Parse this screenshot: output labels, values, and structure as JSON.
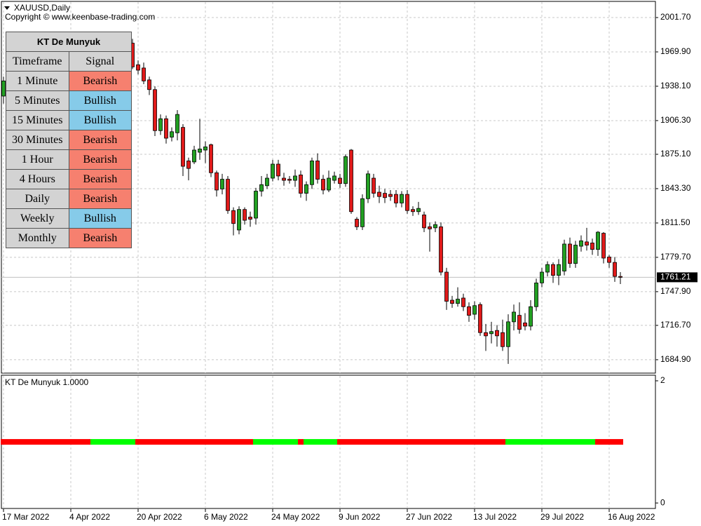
{
  "header": {
    "symbol": "XAUUSD,Daily",
    "copyright": "Copyright © www.keenbase-trading.com"
  },
  "chart_data": [
    {
      "type": "candlestick",
      "categories": [
        "17 Mar 2022",
        null,
        null,
        null,
        null,
        null,
        null,
        null,
        null,
        null,
        null,
        null,
        "4 Apr 2022",
        null,
        null,
        null,
        null,
        null,
        null,
        null,
        null,
        null,
        null,
        null,
        "20 Apr 2022",
        null,
        null,
        null,
        null,
        null,
        null,
        null,
        null,
        null,
        null,
        null,
        "6 May 2022",
        null,
        null,
        null,
        null,
        null,
        null,
        null,
        null,
        null,
        null,
        null,
        "24 May 2022",
        null,
        null,
        null,
        null,
        null,
        null,
        null,
        null,
        null,
        null,
        null,
        "9 Jun 2022",
        null,
        null,
        null,
        null,
        null,
        null,
        null,
        null,
        null,
        null,
        null,
        "27 Jun 2022",
        null,
        null,
        null,
        null,
        null,
        null,
        null,
        null,
        null,
        null,
        null,
        "13 Jul 2022",
        null,
        null,
        null,
        null,
        null,
        null,
        null,
        null,
        null,
        null,
        null,
        "29 Jul 2022",
        null,
        null,
        null,
        null,
        null,
        null,
        null,
        null,
        null,
        null,
        null,
        "16 Aug 2022",
        null,
        null
      ],
      "open": [
        1929,
        null,
        null,
        null,
        null,
        null,
        null,
        null,
        null,
        null,
        null,
        null,
        null,
        null,
        null,
        null,
        null,
        null,
        null,
        null,
        null,
        null,
        null,
        1978,
        1958,
        1955,
        1944,
        1935,
        1897,
        1908,
        1891,
        1895,
        1900,
        1869,
        1868,
        1877,
        1879,
        1884,
        1858,
        1843,
        1852,
        1823,
        1805,
        1824,
        1817,
        1816,
        1841,
        1846,
        1853,
        1866,
        1853,
        1852,
        1851,
        1856,
        1839,
        1847,
        1869,
        1852,
        1842,
        1851,
        1853,
        1848,
        1879,
        1815,
        1808,
        1834,
        1853,
        1840,
        1839,
        1838,
        1838,
        1830,
        1838,
        1824,
        1822,
        1819,
        1808,
        1807,
        1808,
        1766,
        1740,
        1737,
        1742,
        1734,
        1727,
        1736,
        1710,
        1709,
        1712,
        1710,
        1697,
        1720,
        1726,
        1719,
        1716,
        1734,
        1756,
        1766,
        1773,
        1763,
        1767,
        1792,
        1774,
        1790,
        1794,
        1793,
        1787,
        1802,
        1780,
        1775,
        1762
      ],
      "high": [
        1947,
        null,
        null,
        null,
        null,
        null,
        null,
        null,
        null,
        null,
        null,
        null,
        null,
        null,
        null,
        null,
        null,
        null,
        null,
        null,
        null,
        null,
        null,
        1982,
        1962,
        1960,
        1947,
        1938,
        1912,
        1911,
        1900,
        1916,
        1903,
        1872,
        1883,
        1908,
        1887,
        1885,
        1860,
        1857,
        1855,
        1826,
        1827,
        1826,
        1822,
        1844,
        1855,
        1857,
        1870,
        1870,
        1858,
        1855,
        1861,
        1860,
        1850,
        1872,
        1876,
        1856,
        1860,
        1859,
        1857,
        1875,
        1880,
        1817,
        1838,
        1860,
        1857,
        1846,
        1843,
        1842,
        1842,
        1841,
        1842,
        1827,
        1831,
        1822,
        1812,
        1813,
        1812,
        1770,
        1744,
        1752,
        1746,
        1738,
        1739,
        1738,
        1718,
        1720,
        1717,
        1722,
        1727,
        1736,
        1738,
        1728,
        1740,
        1760,
        1770,
        1776,
        1775,
        1778,
        1796,
        1798,
        1795,
        1800,
        1807,
        1797,
        1804,
        1803,
        1782,
        1780,
        1766
      ],
      "low": [
        1922,
        null,
        null,
        null,
        null,
        null,
        null,
        null,
        null,
        null,
        null,
        null,
        null,
        null,
        null,
        null,
        null,
        null,
        null,
        null,
        null,
        null,
        null,
        1954,
        1949,
        1940,
        1930,
        1892,
        1893,
        1885,
        1887,
        1888,
        1855,
        1851,
        1866,
        1870,
        1867,
        1854,
        1836,
        1838,
        1820,
        1800,
        1801,
        1810,
        1808,
        1810,
        1836,
        1843,
        1850,
        1851,
        1846,
        1848,
        1845,
        1835,
        1832,
        1843,
        1848,
        1838,
        1840,
        1848,
        1844,
        1845,
        1820,
        1805,
        1805,
        1830,
        1835,
        1830,
        1830,
        1832,
        1826,
        1826,
        1820,
        1818,
        1819,
        1803,
        1785,
        1803,
        1763,
        1731,
        1733,
        1734,
        1730,
        1720,
        1722,
        1707,
        1693,
        1700,
        1697,
        1693,
        1681,
        1712,
        1709,
        1712,
        1712,
        1730,
        1752,
        1762,
        1756,
        1754,
        1763,
        1770,
        1770,
        1785,
        1786,
        1782,
        1781,
        1774,
        1770,
        1757,
        1755
      ],
      "close": [
        1943,
        null,
        null,
        null,
        null,
        null,
        null,
        null,
        null,
        null,
        null,
        null,
        null,
        null,
        null,
        null,
        null,
        null,
        null,
        null,
        null,
        null,
        null,
        1956,
        1953,
        1943,
        1935,
        1897,
        1908,
        1890,
        1896,
        1912,
        1864,
        1862,
        1879,
        1880,
        1882,
        1858,
        1842,
        1852,
        1823,
        1811,
        1824,
        1814,
        1815,
        1841,
        1847,
        1853,
        1866,
        1855,
        1851,
        1851,
        1855,
        1839,
        1847,
        1869,
        1852,
        1842,
        1853,
        1855,
        1848,
        1873,
        1822,
        1808,
        1834,
        1857,
        1839,
        1836,
        1835,
        1836,
        1830,
        1838,
        1823,
        1822,
        1825,
        1807,
        1806,
        1810,
        1766,
        1739,
        1737,
        1741,
        1734,
        1726,
        1735,
        1710,
        1707,
        1711,
        1707,
        1697,
        1720,
        1729,
        1713,
        1716,
        1734,
        1756,
        1766,
        1773,
        1763,
        1773,
        1792,
        1774,
        1791,
        1795,
        1791,
        1787,
        1803,
        1779,
        1775,
        1762,
        1761.21
      ],
      "colors": {
        "up": "#22a022",
        "down": "#e01a1a"
      },
      "last_price": 1761.21,
      "ylim": [
        1672.5,
        2016.0
      ],
      "yticks": [
        {
          "value": 2001.7,
          "label": "2001.70"
        },
        {
          "value": 1969.9,
          "label": "1969.90"
        },
        {
          "value": 1938.1,
          "label": "1938.10"
        },
        {
          "value": 1906.3,
          "label": "1906.30"
        },
        {
          "value": 1875.1,
          "label": "1875.10"
        },
        {
          "value": 1843.3,
          "label": "1843.30"
        },
        {
          "value": 1811.5,
          "label": "1811.50"
        },
        {
          "value": 1779.7,
          "label": "1779.70"
        },
        {
          "value": 1747.9,
          "label": "1747.90"
        },
        {
          "value": 1716.7,
          "label": "1716.70"
        },
        {
          "value": 1684.9,
          "label": "1684.90"
        }
      ],
      "grid": true
    },
    {
      "type": "strip",
      "title": "KT De Munyuk 1.0000",
      "ylim": [
        -0.09,
        2.08
      ],
      "yticks": [
        2,
        0
      ],
      "series": [
        {
          "color": "#ff0000",
          "values": [
            1,
            1,
            1,
            1,
            1,
            1,
            1,
            1,
            1,
            1,
            1,
            1,
            1,
            1,
            1,
            1,
            null,
            null,
            null,
            null,
            null,
            null,
            null,
            null,
            1,
            1,
            1,
            1,
            1,
            1,
            1,
            1,
            1,
            1,
            1,
            1,
            1,
            1,
            1,
            1,
            1,
            1,
            1,
            1,
            1,
            null,
            null,
            null,
            null,
            null,
            null,
            null,
            null,
            1,
            null,
            null,
            null,
            null,
            null,
            null,
            1,
            1,
            1,
            1,
            1,
            1,
            1,
            1,
            1,
            1,
            1,
            1,
            1,
            1,
            1,
            1,
            1,
            1,
            1,
            1,
            1,
            1,
            1,
            1,
            1,
            1,
            1,
            1,
            1,
            1,
            null,
            null,
            null,
            null,
            null,
            null,
            null,
            null,
            null,
            null,
            null,
            null,
            null,
            null,
            null,
            null,
            1,
            1,
            1,
            1,
            1
          ]
        },
        {
          "color": "#00ff00",
          "values": [
            null,
            null,
            null,
            null,
            null,
            null,
            null,
            null,
            null,
            null,
            null,
            null,
            null,
            null,
            null,
            null,
            1,
            1,
            1,
            1,
            1,
            1,
            1,
            1,
            null,
            null,
            null,
            null,
            null,
            null,
            null,
            null,
            null,
            null,
            null,
            null,
            null,
            null,
            null,
            null,
            null,
            null,
            null,
            null,
            null,
            1,
            1,
            1,
            1,
            1,
            1,
            1,
            1,
            null,
            1,
            1,
            1,
            1,
            1,
            1,
            null,
            null,
            null,
            null,
            null,
            null,
            null,
            null,
            null,
            null,
            null,
            null,
            null,
            null,
            null,
            null,
            null,
            null,
            null,
            null,
            null,
            null,
            null,
            null,
            null,
            null,
            null,
            null,
            null,
            null,
            1,
            1,
            1,
            1,
            1,
            1,
            1,
            1,
            1,
            1,
            1,
            1,
            1,
            1,
            1,
            1,
            null,
            null,
            null,
            null,
            null
          ]
        }
      ]
    }
  ],
  "table": {
    "title": "KT De Munyuk",
    "columns": [
      "Timeframe",
      "Signal"
    ],
    "signal_colors": {
      "Bearish": "#f6806f",
      "Bullish": "#86cbe9"
    },
    "rows": [
      [
        "1 Minute",
        "Bearish"
      ],
      [
        "5 Minutes",
        "Bullish"
      ],
      [
        "15 Minutes",
        "Bullish"
      ],
      [
        "30 Minutes",
        "Bearish"
      ],
      [
        "1 Hour",
        "Bearish"
      ],
      [
        "4 Hours",
        "Bearish"
      ],
      [
        "Daily",
        "Bearish"
      ],
      [
        "Weekly",
        "Bullish"
      ],
      [
        "Monthly",
        "Bearish"
      ]
    ]
  }
}
